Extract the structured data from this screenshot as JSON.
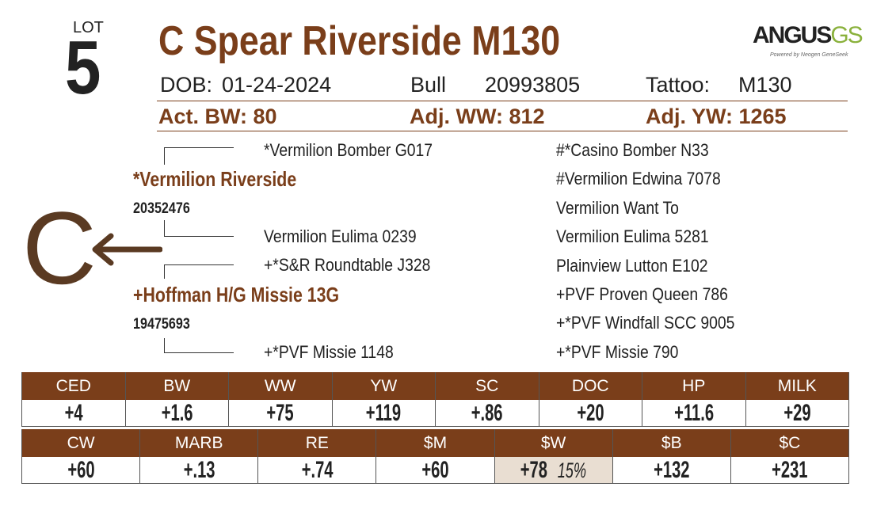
{
  "lot": {
    "label": "LOT",
    "number": "5"
  },
  "name": "C Spear Riverside M130",
  "logo": {
    "main": "ANGUS",
    "accent": "GS",
    "tagline": "Powered by Neogen GeneSeek"
  },
  "info": {
    "dob_label": "DOB:",
    "dob": "01-24-2024",
    "sex": "Bull",
    "registration": "20993805",
    "tattoo_label": "Tattoo:",
    "tattoo": "M130"
  },
  "weights": [
    "Act. BW: 80",
    "Adj. WW: 812",
    "Adj. YW: 1265"
  ],
  "grade": "C",
  "pedigree": {
    "sire": {
      "name": "*Vermilion Riverside",
      "registration": "20352476"
    },
    "dam": {
      "name": "+Hoffman H/G Missie 13G",
      "registration": "19475693"
    },
    "sire_sire": "*Vermilion Bomber G017",
    "sire_dam": "Vermilion Eulima 0239",
    "dam_sire": "+*S&R Roundtable J328",
    "dam_dam": "+*PVF Missie 1148",
    "ancestors": [
      "#*Casino Bomber N33",
      "#Vermilion Edwina 7078",
      "Vermilion Want To",
      "Vermilion Eulima 5281",
      "Plainview Lutton E102",
      "+PVF Proven Queen 786",
      "+*PVF Windfall SCC 9005",
      "+*PVF Missie 790"
    ]
  },
  "epds": [
    [
      {
        "header": "CED",
        "value": "+4"
      },
      {
        "header": "BW",
        "value": "+1.6"
      },
      {
        "header": "WW",
        "value": "+75"
      },
      {
        "header": "YW",
        "value": "+119"
      },
      {
        "header": "SC",
        "value": "+.86"
      },
      {
        "header": "DOC",
        "value": "+20"
      },
      {
        "header": "HP",
        "value": "+11.6"
      },
      {
        "header": "MILK",
        "value": "+29"
      }
    ],
    [
      {
        "header": "CW",
        "value": "+60"
      },
      {
        "header": "MARB",
        "value": "+.13"
      },
      {
        "header": "RE",
        "value": "+.74"
      },
      {
        "header": "$M",
        "value": "+60"
      },
      {
        "header": "$W",
        "value": "+78",
        "percentile": "15%"
      },
      {
        "header": "$B",
        "value": "+132"
      },
      {
        "header": "$C",
        "value": "+231"
      }
    ]
  ]
}
